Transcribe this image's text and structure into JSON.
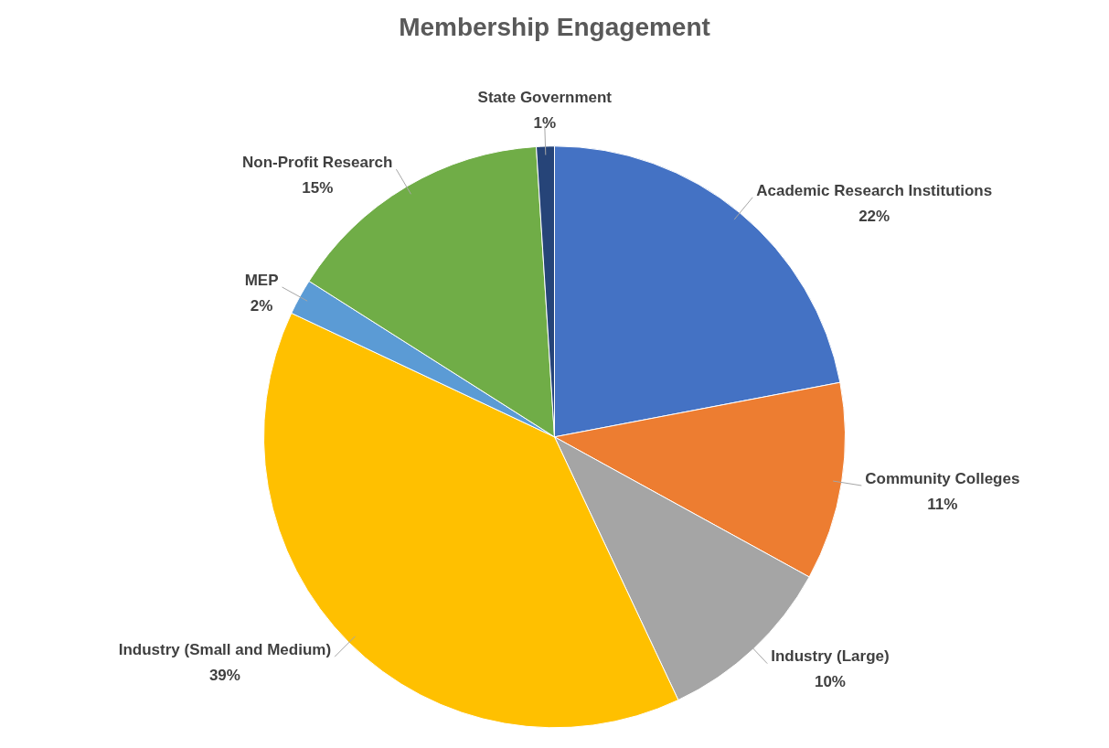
{
  "chart_data": {
    "type": "pie",
    "title": "Membership Engagement",
    "categories": [
      "Academic Research Institutions",
      "Community Colleges",
      "Industry (Large)",
      "Industry (Small and Medium)",
      "MEP",
      "Non-Profit Research",
      "State Government"
    ],
    "values": [
      22,
      11,
      10,
      39,
      2,
      15,
      1
    ],
    "value_labels": [
      "22%",
      "11%",
      "10%",
      "39%",
      "2%",
      "15%",
      "1%"
    ],
    "colors": [
      "#4472c4",
      "#ed7d31",
      "#a5a5a5",
      "#ffc000",
      "#5b9bd5",
      "#70ad47",
      "#264478"
    ],
    "legend": false
  }
}
